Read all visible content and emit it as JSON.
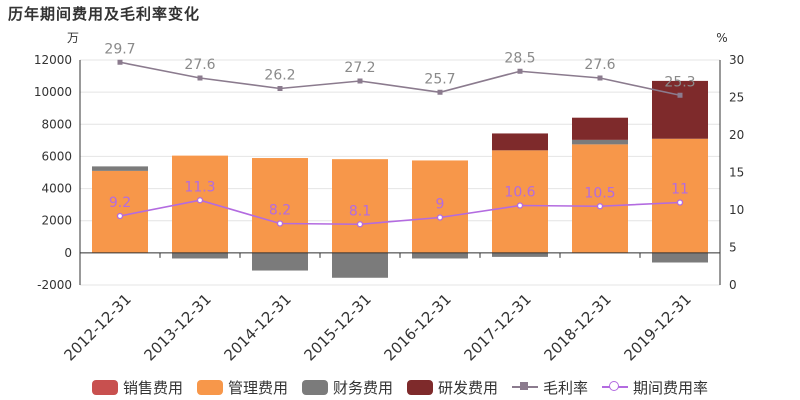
{
  "title": "历年期间费用及毛利率变化",
  "chart_data": {
    "type": "bar",
    "stacked": true,
    "categories": [
      "2012-12-31",
      "2013-12-31",
      "2014-12-31",
      "2015-12-31",
      "2016-12-31",
      "2017-12-31",
      "2018-12-31",
      "2019-12-31"
    ],
    "left_axis": {
      "label": "万",
      "ylim": [
        -2000,
        12000
      ],
      "ticks": [
        -2000,
        0,
        2000,
        4000,
        6000,
        8000,
        10000,
        12000
      ]
    },
    "right_axis": {
      "label": "%",
      "ylim": [
        0,
        30
      ],
      "ticks": [
        0,
        5,
        10,
        15,
        20,
        25,
        30
      ]
    },
    "grid": true,
    "legend_position": "bottom",
    "series": [
      {
        "name": "销售费用",
        "type": "bar",
        "axis": "left",
        "color": "#c8504f",
        "values": [
          0,
          0,
          0,
          0,
          0,
          0,
          0,
          0
        ]
      },
      {
        "name": "管理费用",
        "type": "bar",
        "axis": "left",
        "color": "#f7974a",
        "values": [
          5100,
          6050,
          5900,
          5830,
          5750,
          6380,
          6750,
          7100
        ]
      },
      {
        "name": "财务费用",
        "type": "bar",
        "axis": "left",
        "color": "#7b7b7b",
        "values": [
          280,
          -350,
          -1100,
          -1550,
          -350,
          -250,
          280,
          -600
        ]
      },
      {
        "name": "研发费用",
        "type": "bar",
        "axis": "left",
        "color": "#7e2a2b",
        "values": [
          0,
          0,
          0,
          0,
          0,
          1050,
          1380,
          3600
        ]
      },
      {
        "name": "毛利率",
        "type": "line",
        "axis": "right",
        "color": "#8b7b8e",
        "marker": "square",
        "values": [
          29.7,
          27.6,
          26.2,
          27.2,
          25.7,
          28.5,
          27.6,
          25.3
        ],
        "labels": [
          "29.7",
          "27.6",
          "26.2",
          "27.2",
          "25.7",
          "28.5",
          "27.6",
          "25.3"
        ]
      },
      {
        "name": "期间费用率",
        "type": "line",
        "axis": "right",
        "color": "#b36be0",
        "marker": "circle",
        "values": [
          9.2,
          11.3,
          8.2,
          8.1,
          9,
          10.6,
          10.5,
          11
        ],
        "labels": [
          "9.2",
          "11.3",
          "8.2",
          "8.1",
          "9",
          "10.6",
          "10.5",
          "11"
        ]
      }
    ]
  }
}
